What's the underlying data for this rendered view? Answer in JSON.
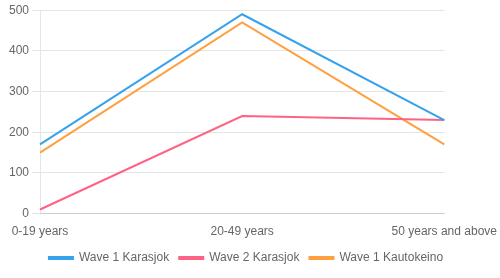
{
  "chart_data": {
    "type": "line",
    "categories": [
      "0-19 years",
      "20-49 years",
      "50 years and above"
    ],
    "series": [
      {
        "name": "Wave 1 Karasjok",
        "values": [
          170,
          490,
          230
        ]
      },
      {
        "name": "Wave 2 Karasjok",
        "values": [
          10,
          240,
          230
        ]
      },
      {
        "name": "Wave 1 Kautokeino",
        "values": [
          150,
          470,
          170
        ]
      }
    ],
    "ylim": [
      0,
      500
    ],
    "yticks": [
      0,
      100,
      200,
      300,
      400,
      500
    ],
    "grid": true,
    "legend": "bottom"
  }
}
